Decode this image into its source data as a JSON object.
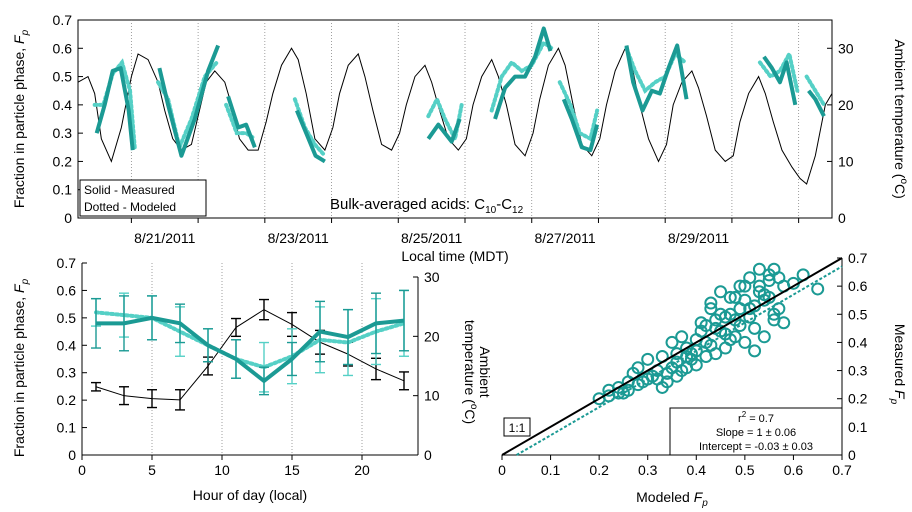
{
  "colors": {
    "measured": "#1b9a94",
    "modeled": "#55d0c6",
    "temperature": "#000000",
    "errorbar_measured": "#1b9a94",
    "errorbar_modeled": "#55d0c6",
    "scatter": "#1b9a94",
    "grid": "#888888"
  },
  "chart_data": [
    {
      "type": "line",
      "panel": "time-series",
      "annotation": "Bulk-averaged acids: C10-C12",
      "legend_box": [
        "Solid - Measured",
        "Dotted - Modeled"
      ],
      "legend_placement": "bottom-left",
      "xlabel": "Local time (MDT)",
      "ylabel_left": "Fraction in particle phase, F_p",
      "ylabel_right": "Ambient temperature (°C)",
      "ylim_left": [
        0,
        0.7
      ],
      "yticks_left": [
        "0",
        "0.1",
        "0.2",
        "0.3",
        "0.4",
        "0.5",
        "0.6",
        "0.7"
      ],
      "ylim_right": [
        0,
        35
      ],
      "yticks_right": [
        "0",
        "10",
        "20",
        "30"
      ],
      "xlim": [
        0.2,
        11.5
      ],
      "xtick_labels": [
        "8/21/2011",
        "8/23/2011",
        "8/25/2011",
        "8/27/2011",
        "8/29/2011"
      ],
      "xtick_days": [
        1,
        3,
        5,
        7,
        9
      ],
      "midnight_gridlines": true,
      "series": [
        {
          "name": "Measured",
          "style": "solid",
          "axis": "left",
          "segments": [
            {
              "x": [
                0.48,
                0.6,
                0.72,
                0.84,
                0.96,
                1.02
              ],
              "y": [
                0.3,
                0.4,
                0.52,
                0.53,
                0.38,
                0.24
              ]
            },
            {
              "x": [
                1.42,
                1.55,
                1.75,
                1.95,
                2.15,
                2.3
              ],
              "y": [
                0.53,
                0.4,
                0.22,
                0.35,
                0.52,
                0.61
              ]
            },
            {
              "x": [
                2.45,
                2.6,
                2.72,
                2.85
              ],
              "y": [
                0.43,
                0.32,
                0.33,
                0.25
              ]
            },
            {
              "x": [
                3.48,
                3.62,
                3.76,
                3.9
              ],
              "y": [
                0.38,
                0.3,
                0.22,
                0.2
              ]
            },
            {
              "x": [
                5.45,
                5.6,
                5.8,
                5.92
              ],
              "y": [
                0.28,
                0.33,
                0.27,
                0.35
              ]
            },
            {
              "x": [
                6.45,
                6.6,
                6.75,
                6.9,
                7.05,
                7.18,
                7.28
              ],
              "y": [
                0.35,
                0.46,
                0.5,
                0.5,
                0.57,
                0.67,
                0.59
              ]
            },
            {
              "x": [
                7.48,
                7.6,
                7.75,
                7.88,
                7.98
              ],
              "y": [
                0.42,
                0.35,
                0.25,
                0.24,
                0.33
              ]
            },
            {
              "x": [
                8.42,
                8.52,
                8.66,
                8.8,
                8.92,
                9.05,
                9.18,
                9.32
              ],
              "y": [
                0.61,
                0.48,
                0.38,
                0.45,
                0.44,
                0.53,
                0.61,
                0.42
              ]
            },
            {
              "x": [
                10.48,
                10.6,
                10.72,
                10.82,
                10.95
              ],
              "y": [
                0.57,
                0.53,
                0.48,
                0.55,
                0.4
              ]
            },
            {
              "x": [
                11.15,
                11.25,
                11.38
              ],
              "y": [
                0.45,
                0.42,
                0.36
              ]
            }
          ]
        },
        {
          "name": "Modeled",
          "style": "dotted",
          "axis": "left",
          "segments": [
            {
              "x": [
                0.45,
                0.58,
                0.72,
                0.86,
                0.98,
                1.05
              ],
              "y": [
                0.4,
                0.4,
                0.51,
                0.55,
                0.45,
                0.25
              ]
            },
            {
              "x": [
                1.4,
                1.55,
                1.72,
                1.9,
                2.1,
                2.28
              ],
              "y": [
                0.48,
                0.42,
                0.25,
                0.35,
                0.5,
                0.55
              ]
            },
            {
              "x": [
                2.42,
                2.58,
                2.72,
                2.85
              ],
              "y": [
                0.4,
                0.3,
                0.3,
                0.28
              ]
            },
            {
              "x": [
                3.45,
                3.6,
                3.75,
                3.9
              ],
              "y": [
                0.42,
                0.32,
                0.26,
                0.22
              ]
            },
            {
              "x": [
                5.45,
                5.58,
                5.7,
                5.85,
                5.95
              ],
              "y": [
                0.36,
                0.42,
                0.35,
                0.28,
                0.4
              ]
            },
            {
              "x": [
                6.4,
                6.55,
                6.7,
                6.85,
                7.0,
                7.18,
                7.3
              ],
              "y": [
                0.38,
                0.5,
                0.55,
                0.52,
                0.54,
                0.62,
                0.6
              ]
            },
            {
              "x": [
                7.42,
                7.58,
                7.72,
                7.88,
                7.98
              ],
              "y": [
                0.48,
                0.4,
                0.3,
                0.28,
                0.38
              ]
            },
            {
              "x": [
                8.42,
                8.55,
                8.7,
                8.85,
                9.0,
                9.15,
                9.3
              ],
              "y": [
                0.6,
                0.52,
                0.45,
                0.48,
                0.5,
                0.58,
                0.55
              ]
            },
            {
              "x": [
                10.42,
                10.58,
                10.72,
                10.86,
                10.98
              ],
              "y": [
                0.55,
                0.5,
                0.52,
                0.58,
                0.45
              ]
            },
            {
              "x": [
                11.12,
                11.25,
                11.38
              ],
              "y": [
                0.5,
                0.45,
                0.4
              ]
            }
          ]
        },
        {
          "name": "Ambient temperature",
          "style": "thin",
          "axis": "right",
          "x": [
            0.2,
            0.35,
            0.45,
            0.55,
            0.7,
            0.85,
            1.0,
            1.1,
            1.25,
            1.4,
            1.5,
            1.62,
            1.75,
            1.9,
            2.02,
            2.12,
            2.25,
            2.4,
            2.5,
            2.62,
            2.75,
            2.9,
            3.02,
            3.12,
            3.25,
            3.4,
            3.5,
            3.62,
            3.75,
            3.9,
            4.02,
            4.12,
            4.25,
            4.4,
            4.5,
            4.62,
            4.75,
            4.9,
            5.02,
            5.12,
            5.25,
            5.4,
            5.5,
            5.62,
            5.75,
            5.9,
            6.02,
            6.12,
            6.25,
            6.4,
            6.5,
            6.62,
            6.75,
            6.9,
            7.02,
            7.12,
            7.25,
            7.4,
            7.5,
            7.62,
            7.75,
            7.9,
            8.02,
            8.12,
            8.25,
            8.4,
            8.5,
            8.62,
            8.75,
            8.9,
            9.02,
            9.12,
            9.25,
            9.4,
            9.5,
            9.62,
            9.75,
            9.9,
            10.02,
            10.12,
            10.25,
            10.4,
            10.5,
            10.62,
            10.75,
            10.9,
            11.02,
            11.12,
            11.25,
            11.4,
            11.5
          ],
          "y": [
            24,
            25,
            22,
            14,
            10,
            16,
            25,
            29,
            28,
            24,
            19,
            14,
            12,
            13,
            19,
            24,
            26,
            24,
            20,
            14,
            12,
            12,
            17,
            22,
            27,
            30,
            28,
            22,
            14,
            12,
            16,
            22,
            27,
            29,
            25,
            19,
            13,
            12,
            15,
            20,
            25,
            27,
            24,
            19,
            14,
            12,
            14,
            20,
            25,
            28,
            25,
            20,
            13,
            11,
            15,
            21,
            27,
            30,
            27,
            20,
            13,
            11,
            14,
            20,
            26,
            30,
            27,
            20,
            14,
            10,
            13,
            20,
            24,
            26,
            23,
            18,
            12,
            10,
            11,
            17,
            22,
            25,
            22,
            17,
            12,
            9,
            7,
            6,
            11,
            20,
            22
          ]
        }
      ]
    },
    {
      "type": "line",
      "panel": "diurnal",
      "xlabel": "Hour of day (local)",
      "ylabel_left": "Fraction in particle phase, F_p",
      "ylabel_right": "Ambient temperature (°C)",
      "xlim": [
        0,
        24
      ],
      "xticks": [
        "0",
        "5",
        "10",
        "15",
        "20"
      ],
      "ylim_left": [
        0,
        0.7
      ],
      "yticks_left": [
        "0",
        "0.1",
        "0.2",
        "0.3",
        "0.4",
        "0.5",
        "0.6",
        "0.7"
      ],
      "ylim_right": [
        0,
        30
      ],
      "yticks_right": [
        "0",
        "10",
        "20",
        "30"
      ],
      "gridlines_x": [
        5,
        10,
        15,
        20
      ],
      "x": [
        1,
        3,
        5,
        7,
        9,
        11,
        13,
        15,
        17,
        19,
        21,
        23
      ],
      "series": [
        {
          "name": "Measured",
          "style": "solid",
          "axis": "left",
          "values": [
            0.48,
            0.48,
            0.5,
            0.48,
            0.4,
            0.35,
            0.27,
            0.35,
            0.45,
            0.43,
            0.48,
            0.49
          ],
          "err": [
            0.09,
            0.1,
            0.08,
            0.07,
            0.06,
            0.07,
            0.05,
            0.06,
            0.11,
            0.1,
            0.11,
            0.11
          ]
        },
        {
          "name": "Modeled",
          "style": "dotted",
          "axis": "left",
          "values": [
            0.52,
            0.51,
            0.5,
            0.45,
            0.4,
            0.35,
            0.32,
            0.36,
            0.42,
            0.41,
            0.45,
            0.48
          ],
          "err": [
            0.05,
            0.08,
            0.08,
            0.09,
            0.06,
            0.07,
            0.09,
            0.1,
            0.12,
            0.12,
            0.12,
            0.12
          ]
        },
        {
          "name": "Ambient temperature",
          "style": "thin",
          "axis": "right",
          "values": [
            11.5,
            10.0,
            9.5,
            9.3,
            15.0,
            21.5,
            24.5,
            22.0,
            19.0,
            17.0,
            14.5,
            12.5
          ],
          "err": [
            0.7,
            1.5,
            1.5,
            1.7,
            1.5,
            1.5,
            1.7,
            2.0,
            2.0,
            2.0,
            1.8,
            1.5
          ]
        }
      ]
    },
    {
      "type": "scatter",
      "panel": "measured-vs-modeled",
      "xlabel": "Modeled F_p",
      "ylabel": "Measured F_p",
      "xlim": [
        0,
        0.7
      ],
      "ylim": [
        0,
        0.7
      ],
      "xticks": [
        "0",
        "0.1",
        "0.2",
        "0.3",
        "0.4",
        "0.5",
        "0.6",
        "0.7"
      ],
      "yticks": [
        "0",
        "0.1",
        "0.2",
        "0.3",
        "0.4",
        "0.5",
        "0.6",
        "0.7"
      ],
      "one_to_one_label": "1:1",
      "stats": [
        "r² = 0.7",
        "Slope = 1 ± 0.06",
        "Intercept = -0.03 ± 0.03"
      ],
      "fit": {
        "slope": 1.0,
        "intercept": -0.03
      },
      "points": {
        "x": [
          0.2,
          0.22,
          0.24,
          0.25,
          0.26,
          0.27,
          0.28,
          0.29,
          0.3,
          0.31,
          0.32,
          0.33,
          0.34,
          0.35,
          0.36,
          0.37,
          0.38,
          0.39,
          0.4,
          0.41,
          0.42,
          0.43,
          0.44,
          0.45,
          0.46,
          0.47,
          0.48,
          0.49,
          0.5,
          0.51,
          0.52,
          0.53,
          0.54,
          0.55,
          0.56,
          0.57,
          0.58,
          0.6,
          0.62,
          0.65,
          0.33,
          0.36,
          0.38,
          0.4,
          0.42,
          0.44,
          0.46,
          0.48,
          0.5,
          0.52,
          0.54,
          0.56,
          0.43,
          0.45,
          0.47,
          0.49,
          0.51,
          0.53,
          0.55,
          0.41,
          0.43,
          0.47,
          0.49,
          0.52,
          0.56,
          0.58,
          0.3,
          0.35,
          0.37,
          0.39,
          0.45,
          0.5,
          0.54,
          0.57,
          0.53,
          0.55,
          0.51,
          0.48,
          0.46,
          0.44,
          0.42,
          0.4,
          0.38,
          0.36,
          0.34,
          0.32,
          0.28,
          0.26,
          0.24,
          0.22
        ],
        "y": [
          0.2,
          0.23,
          0.24,
          0.22,
          0.23,
          0.29,
          0.25,
          0.26,
          0.27,
          0.28,
          0.3,
          0.24,
          0.29,
          0.31,
          0.33,
          0.3,
          0.35,
          0.34,
          0.37,
          0.44,
          0.4,
          0.39,
          0.45,
          0.5,
          0.43,
          0.41,
          0.48,
          0.52,
          0.55,
          0.49,
          0.53,
          0.6,
          0.57,
          0.62,
          0.66,
          0.63,
          0.6,
          0.61,
          0.64,
          0.59,
          0.35,
          0.28,
          0.38,
          0.32,
          0.35,
          0.36,
          0.38,
          0.42,
          0.4,
          0.45,
          0.42,
          0.48,
          0.54,
          0.58,
          0.56,
          0.6,
          0.63,
          0.66,
          0.64,
          0.47,
          0.52,
          0.5,
          0.46,
          0.37,
          0.5,
          0.47,
          0.34,
          0.4,
          0.42,
          0.36,
          0.44,
          0.6,
          0.55,
          0.52,
          0.58,
          0.56,
          0.52,
          0.56,
          0.49,
          0.48,
          0.46,
          0.41,
          0.31,
          0.36,
          0.26,
          0.27,
          0.31,
          0.26,
          0.22,
          0.21
        ]
      }
    }
  ]
}
